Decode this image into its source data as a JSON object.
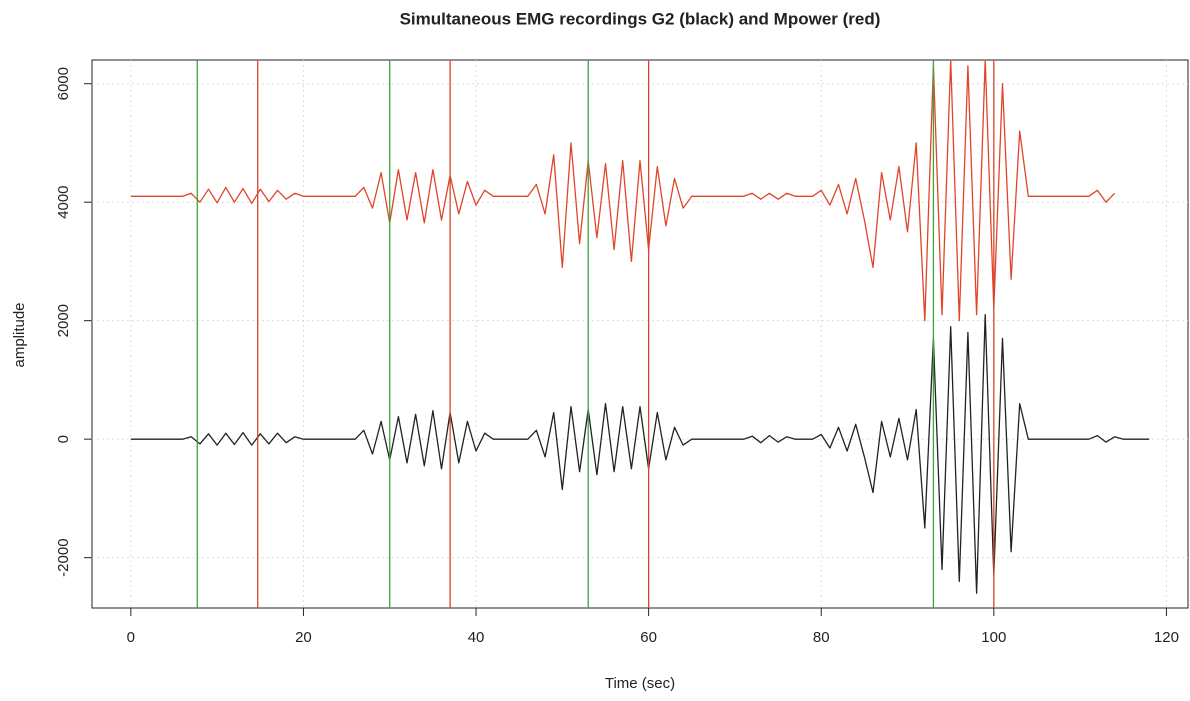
{
  "chart_data": {
    "type": "line",
    "title": "Simultaneous EMG recordings G2 (black) and Mpower (red)",
    "xlabel": "Time (sec)",
    "ylabel": "amplitude",
    "xlim": [
      -4.5,
      122.5
    ],
    "ylim": [
      -2850,
      6400
    ],
    "xticks": [
      0,
      20,
      40,
      60,
      80,
      100,
      120
    ],
    "yticks": [
      -2000,
      0,
      2000,
      4000,
      6000
    ],
    "grid": true,
    "x": [
      0,
      1,
      2,
      3,
      4,
      5,
      6,
      7,
      8,
      9,
      10,
      11,
      12,
      13,
      14,
      15,
      16,
      17,
      18,
      19,
      20,
      21,
      22,
      23,
      24,
      25,
      26,
      27,
      28,
      29,
      30,
      31,
      32,
      33,
      34,
      35,
      36,
      37,
      38,
      39,
      40,
      41,
      42,
      43,
      44,
      45,
      46,
      47,
      48,
      49,
      50,
      51,
      52,
      53,
      54,
      55,
      56,
      57,
      58,
      59,
      60,
      61,
      62,
      63,
      64,
      65,
      66,
      67,
      68,
      69,
      70,
      71,
      72,
      73,
      74,
      75,
      76,
      77,
      78,
      79,
      80,
      81,
      82,
      83,
      84,
      85,
      86,
      87,
      88,
      89,
      90,
      91,
      92,
      93,
      94,
      95,
      96,
      97,
      98,
      99,
      100,
      101,
      102,
      103,
      104,
      105,
      106,
      107,
      108,
      109,
      110,
      111,
      112,
      113,
      114,
      115,
      116,
      117,
      118
    ],
    "series": [
      {
        "color": "#222222",
        "values": [
          0,
          0,
          0,
          0,
          0,
          0,
          0,
          40,
          -80,
          90,
          -100,
          100,
          -90,
          110,
          -100,
          90,
          -80,
          100,
          -60,
          40,
          0,
          0,
          0,
          0,
          0,
          0,
          0,
          150,
          -250,
          300,
          -350,
          380,
          -400,
          420,
          -450,
          480,
          -500,
          450,
          -400,
          300,
          -200,
          100,
          0,
          0,
          0,
          0,
          0,
          150,
          -300,
          450,
          -850,
          550,
          -550,
          500,
          -600,
          600,
          -550,
          550,
          -500,
          550,
          -500,
          450,
          -350,
          200,
          -100,
          0,
          0,
          0,
          0,
          0,
          0,
          0,
          50,
          -60,
          60,
          -50,
          40,
          0,
          0,
          0,
          80,
          -150,
          200,
          -200,
          250,
          -300,
          -900,
          300,
          -300,
          350,
          -350,
          500,
          -1500,
          1700,
          -2200,
          1900,
          -2400,
          1800,
          -2600,
          2100,
          -2300,
          1700,
          -1900,
          600,
          0,
          0,
          0,
          0,
          0,
          0,
          0,
          0,
          60,
          -50,
          40,
          0,
          0,
          0,
          0
        ]
      },
      {
        "color": "#e0452a",
        "values": [
          4100,
          4100,
          4100,
          4100,
          4100,
          4100,
          4100,
          4150,
          4000,
          4220,
          3990,
          4250,
          4000,
          4230,
          3980,
          4220,
          4010,
          4200,
          4050,
          4150,
          4100,
          4100,
          4100,
          4100,
          4100,
          4100,
          4100,
          4250,
          3900,
          4500,
          3650,
          4550,
          3700,
          4500,
          3650,
          4550,
          3700,
          4450,
          3800,
          4350,
          3950,
          4200,
          4100,
          4100,
          4100,
          4100,
          4100,
          4300,
          3800,
          4800,
          2900,
          5000,
          3300,
          4700,
          3400,
          4650,
          3200,
          4700,
          3000,
          4700,
          3200,
          4600,
          3600,
          4400,
          3900,
          4100,
          4100,
          4100,
          4100,
          4100,
          4100,
          4100,
          4150,
          4050,
          4150,
          4050,
          4150,
          4100,
          4100,
          4100,
          4200,
          3950,
          4300,
          3800,
          4400,
          3700,
          2900,
          4500,
          3700,
          4600,
          3500,
          5000,
          2000,
          6300,
          2100,
          6400,
          2000,
          6300,
          2100,
          6400,
          2200,
          6000,
          2700,
          5200,
          4100,
          4100,
          4100,
          4100,
          4100,
          4100,
          4100,
          4100,
          4200,
          4000,
          4150,
          null,
          null,
          null,
          null
        ]
      }
    ],
    "vlines": [
      {
        "x": 7.7,
        "color": "#3aa53a"
      },
      {
        "x": 14.7,
        "color": "#d9452b"
      },
      {
        "x": 30,
        "color": "#3aa53a"
      },
      {
        "x": 37,
        "color": "#d9452b"
      },
      {
        "x": 53,
        "color": "#3aa53a"
      },
      {
        "x": 60,
        "color": "#d9452b"
      },
      {
        "x": 93,
        "color": "#3aa53a"
      },
      {
        "x": 100,
        "color": "#d9452b"
      }
    ]
  }
}
